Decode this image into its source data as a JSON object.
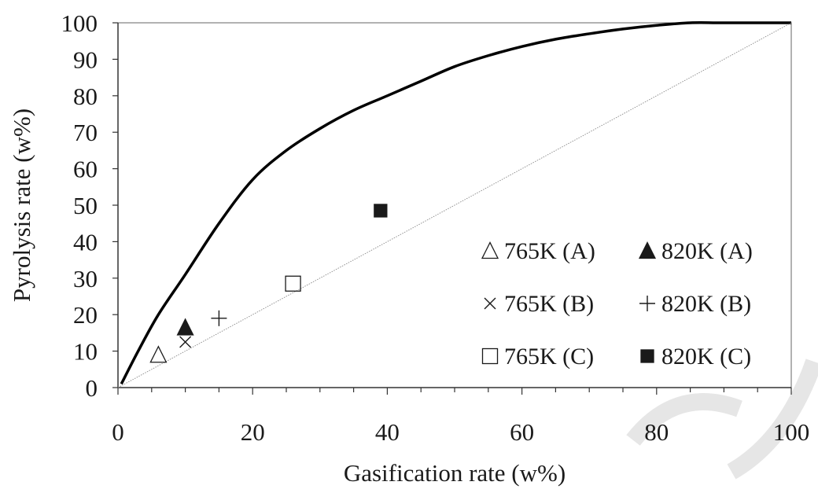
{
  "chart_data": {
    "type": "scatter",
    "xlabel": "Gasification rate (w%)",
    "ylabel": "Pyrolysis rate (w%)",
    "xlim": [
      0,
      100
    ],
    "ylim": [
      0,
      100
    ],
    "x_ticks": [
      "0",
      "20",
      "40",
      "60",
      "80",
      "100"
    ],
    "y_ticks": [
      "0",
      "10",
      "20",
      "30",
      "40",
      "50",
      "60",
      "70",
      "80",
      "90",
      "100"
    ],
    "grid": false,
    "legend_position": "bottom-right",
    "lines": [
      {
        "style": "solid-thick",
        "color": "#000000",
        "points": [
          [
            0.5,
            1
          ],
          [
            3,
            10
          ],
          [
            6,
            20
          ],
          [
            10,
            31
          ],
          [
            15,
            45
          ],
          [
            20,
            57
          ],
          [
            25,
            65
          ],
          [
            30,
            71
          ],
          [
            35,
            76
          ],
          [
            40,
            80
          ],
          [
            45,
            84
          ],
          [
            50,
            88
          ],
          [
            55,
            91
          ],
          [
            60,
            93.5
          ],
          [
            65,
            95.5
          ],
          [
            70,
            97
          ],
          [
            75,
            98.3
          ],
          [
            80,
            99.3
          ],
          [
            85,
            100
          ],
          [
            90,
            100
          ],
          [
            100,
            100
          ]
        ]
      },
      {
        "style": "dotted-thin",
        "color": "#888888",
        "points": [
          [
            0,
            0
          ],
          [
            100,
            100
          ]
        ]
      }
    ],
    "series": [
      {
        "name": "765K (A)",
        "marker": "triangle-open",
        "points": [
          [
            6,
            9
          ]
        ]
      },
      {
        "name": "820K (A)",
        "marker": "triangle-filled",
        "points": [
          [
            10,
            16.5
          ]
        ]
      },
      {
        "name": "765K (B)",
        "marker": "x",
        "points": [
          [
            10,
            12.5
          ]
        ]
      },
      {
        "name": "820K (B)",
        "marker": "plus",
        "points": [
          [
            15,
            19
          ]
        ]
      },
      {
        "name": "765K (C)",
        "marker": "square-open",
        "points": [
          [
            26,
            28.5
          ]
        ]
      },
      {
        "name": "820K (C)",
        "marker": "square-filled",
        "points": [
          [
            39,
            48.5
          ]
        ]
      }
    ]
  },
  "colors": {
    "axis": "#333333",
    "marker": "#1a1a1a",
    "watermark": "#e4e4e4"
  }
}
